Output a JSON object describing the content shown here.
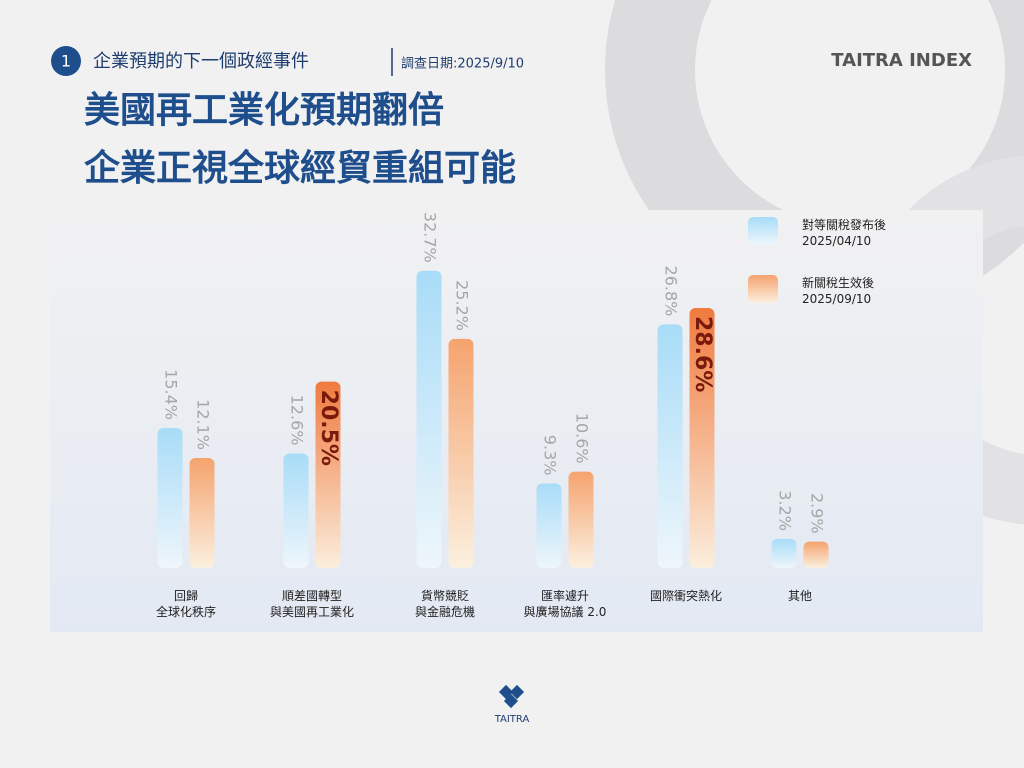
{
  "header": {
    "badge": "1",
    "kicker": "企業預期的下一個政經事件",
    "date": "調查日期:2025/9/10",
    "brand": "TAITRA INDEX",
    "title_lines": [
      "美國再工業化預期翻倍",
      "企業正視全球經貿重組可能"
    ]
  },
  "chart_data": {
    "type": "bar",
    "categories": [
      "回歸\n全球化秩序",
      "順差國轉型\n與美國再工業化",
      "貨幣競貶\n與金融危機",
      "匯率遽升\n與廣場協議 2.0",
      "國際衝突熱化",
      "其他"
    ],
    "series": [
      {
        "name": "對等關稅發布後\n2025/04/10",
        "color": "#a8dcf8",
        "values": [
          15.4,
          12.6,
          32.7,
          9.3,
          26.8,
          3.2
        ],
        "value_labels": [
          "15.4%",
          "12.6%",
          "32.7%",
          "9.3%",
          "26.8%",
          "3.2%"
        ]
      },
      {
        "name": "新關稅生效後\n2025/09/10",
        "color": "#f5a36e",
        "values": [
          12.1,
          20.5,
          25.2,
          10.6,
          28.6,
          2.9
        ],
        "value_labels": [
          "12.1%",
          "20.5%",
          "25.2%",
          "10.6%",
          "28.6%",
          "2.9%"
        ],
        "highlight": [
          false,
          true,
          false,
          false,
          true,
          false
        ],
        "highlight_color": "#f07a3e"
      }
    ],
    "ylim": [
      0,
      33
    ]
  },
  "footer": {
    "logo": "TAITRA"
  }
}
